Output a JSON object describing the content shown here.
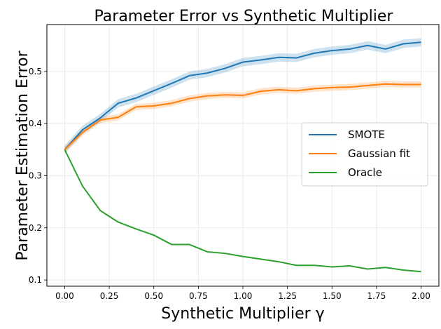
{
  "chart_data": {
    "type": "line",
    "title": "Parameter Error vs Synthetic Multiplier",
    "xlabel": "Synthetic Multiplier γ",
    "ylabel": "Parameter Estimation Error",
    "xlim": [
      -0.1,
      2.1
    ],
    "ylim": [
      0.088,
      0.59
    ],
    "grid": true,
    "legend_position": "center-right",
    "x": [
      0.0,
      0.1,
      0.2,
      0.3,
      0.4,
      0.5,
      0.6,
      0.7,
      0.8,
      0.9,
      1.0,
      1.1,
      1.2,
      1.3,
      1.4,
      1.5,
      1.6,
      1.7,
      1.8,
      1.9,
      2.0
    ],
    "x_ticks": [
      "0.00",
      "0.25",
      "0.50",
      "0.75",
      "1.00",
      "1.25",
      "1.50",
      "1.75",
      "2.00"
    ],
    "x_tick_values": [
      0,
      0.25,
      0.5,
      0.75,
      1.0,
      1.25,
      1.5,
      1.75,
      2.0
    ],
    "y_ticks": [
      "0.1",
      "0.2",
      "0.3",
      "0.4",
      "0.5"
    ],
    "y_tick_values": [
      0.1,
      0.2,
      0.3,
      0.4,
      0.5
    ],
    "series": [
      {
        "name": "SMOTE",
        "color": "#1f77b4",
        "values": [
          0.35,
          0.388,
          0.411,
          0.439,
          0.449,
          0.463,
          0.477,
          0.492,
          0.497,
          0.506,
          0.518,
          0.522,
          0.527,
          0.526,
          0.535,
          0.54,
          0.543,
          0.55,
          0.543,
          0.553,
          0.556
        ],
        "band": 0.008
      },
      {
        "name": "Gaussian fit",
        "color": "#ff7f0e",
        "values": [
          0.35,
          0.383,
          0.407,
          0.412,
          0.432,
          0.434,
          0.439,
          0.448,
          0.453,
          0.455,
          0.454,
          0.462,
          0.465,
          0.463,
          0.467,
          0.469,
          0.47,
          0.473,
          0.476,
          0.475,
          0.475
        ],
        "band": 0.006
      },
      {
        "name": "Oracle",
        "color": "#2ca02c",
        "values": [
          0.35,
          0.28,
          0.233,
          0.211,
          0.198,
          0.186,
          0.168,
          0.168,
          0.154,
          0.151,
          0.145,
          0.14,
          0.135,
          0.128,
          0.128,
          0.125,
          0.127,
          0.121,
          0.124,
          0.119,
          0.116
        ],
        "band": 0
      }
    ]
  }
}
